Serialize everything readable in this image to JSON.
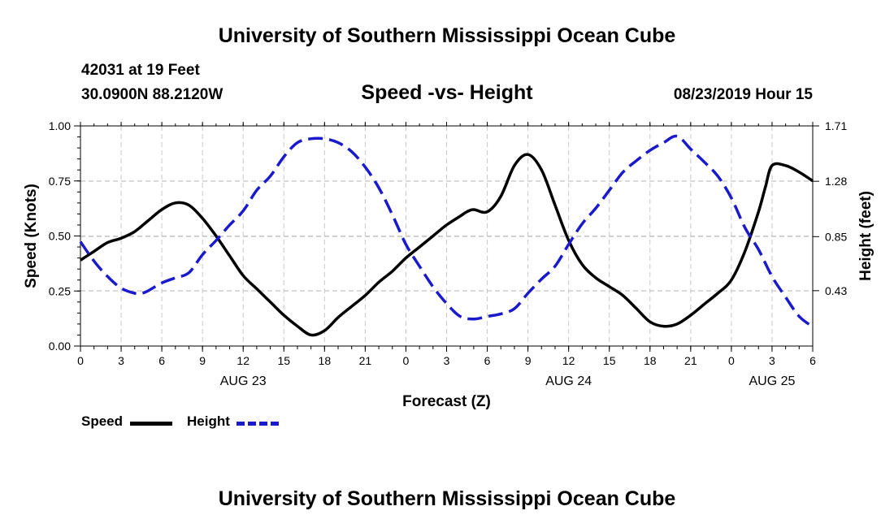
{
  "header": {
    "title": "University of Southern Mississippi Ocean Cube",
    "station": "42031 at 19 Feet",
    "coords": "30.0900N 88.2120W",
    "subtitle": "Speed -vs- Height",
    "timestamp": "08/23/2019 Hour 15"
  },
  "footer": {
    "title": "University of Southern Mississippi Ocean Cube"
  },
  "legend": {
    "speed_label": "Speed",
    "height_label": "Height"
  },
  "colors": {
    "speed": "#000000",
    "height": "#1a1acc",
    "grid": "#c8c8c8"
  },
  "chart_data": {
    "type": "line",
    "title": "Speed -vs- Height",
    "xlabel": "Forecast (Z)",
    "ylabel": "Speed (Knots)",
    "y2label": "Height (feet)",
    "xlim": [
      0,
      54
    ],
    "ylim": [
      0,
      1.0
    ],
    "y2lim": [
      0.0,
      1.71
    ],
    "x_ticks": [
      0,
      3,
      6,
      9,
      12,
      15,
      18,
      21,
      24,
      27,
      30,
      33,
      36,
      39,
      42,
      45,
      48,
      51,
      54
    ],
    "x_tick_labels": [
      "0",
      "3",
      "6",
      "9",
      "12",
      "15",
      "18",
      "21",
      "0",
      "3",
      "6",
      "9",
      "12",
      "15",
      "18",
      "21",
      "0",
      "3",
      "6"
    ],
    "date_labels": [
      {
        "x": 12,
        "label": "AUG 23"
      },
      {
        "x": 36,
        "label": "AUG 24"
      },
      {
        "x": 51,
        "label": "AUG 25"
      }
    ],
    "y_ticks": [
      0,
      0.25,
      0.5,
      0.75,
      1.0
    ],
    "y_tick_labels": [
      "0.00",
      "0.25",
      "0.50",
      "0.75",
      "1.00"
    ],
    "y2_ticks": [
      0.43,
      0.85,
      1.28,
      1.71
    ],
    "y2_tick_labels": [
      "0.43",
      "0.85",
      "1.28",
      "1.71"
    ],
    "grid": true,
    "series": [
      {
        "name": "Speed",
        "axis": "left",
        "style": "solid",
        "x": [
          0,
          1,
          2,
          3,
          4,
          5,
          6,
          7,
          8,
          9,
          10,
          11,
          12,
          13,
          14,
          15,
          16,
          17,
          18,
          19,
          20,
          21,
          22,
          23,
          24,
          25,
          26,
          27,
          28,
          28.5,
          29,
          30,
          31,
          32,
          33,
          34,
          35,
          36,
          37,
          38,
          39,
          40,
          41,
          42,
          43,
          44,
          45,
          46,
          47,
          48,
          49,
          50,
          50.5,
          51,
          52,
          53,
          54
        ],
        "y": [
          0.39,
          0.43,
          0.47,
          0.49,
          0.52,
          0.57,
          0.62,
          0.65,
          0.64,
          0.58,
          0.5,
          0.41,
          0.32,
          0.26,
          0.2,
          0.14,
          0.09,
          0.05,
          0.07,
          0.13,
          0.18,
          0.23,
          0.29,
          0.34,
          0.4,
          0.45,
          0.5,
          0.55,
          0.59,
          0.61,
          0.62,
          0.61,
          0.68,
          0.82,
          0.87,
          0.8,
          0.64,
          0.48,
          0.37,
          0.31,
          0.27,
          0.23,
          0.17,
          0.11,
          0.09,
          0.1,
          0.14,
          0.19,
          0.24,
          0.3,
          0.43,
          0.61,
          0.72,
          0.82,
          0.82,
          0.79,
          0.75
        ]
      },
      {
        "name": "Height",
        "axis": "right",
        "style": "dashed",
        "x": [
          0,
          1,
          2,
          3,
          4,
          4.5,
          5,
          6,
          7,
          8,
          9,
          10,
          11,
          12,
          13,
          14,
          15,
          16,
          17,
          18,
          19,
          20,
          21,
          22,
          23,
          24,
          25,
          26,
          27,
          28,
          29,
          30,
          31,
          32,
          33,
          34,
          35,
          36,
          37,
          38,
          39,
          40,
          41,
          42,
          43,
          44,
          45,
          46,
          47,
          48,
          49,
          50,
          51,
          52,
          53,
          54
        ],
        "y": [
          0.81,
          0.66,
          0.54,
          0.45,
          0.41,
          0.41,
          0.43,
          0.49,
          0.53,
          0.57,
          0.71,
          0.82,
          0.94,
          1.05,
          1.21,
          1.32,
          1.47,
          1.58,
          1.61,
          1.61,
          1.58,
          1.51,
          1.39,
          1.23,
          1.02,
          0.79,
          0.62,
          0.46,
          0.33,
          0.23,
          0.21,
          0.23,
          0.25,
          0.29,
          0.41,
          0.52,
          0.62,
          0.79,
          0.95,
          1.07,
          1.21,
          1.35,
          1.44,
          1.52,
          1.58,
          1.63,
          1.53,
          1.43,
          1.32,
          1.15,
          0.92,
          0.75,
          0.54,
          0.38,
          0.23,
          0.15
        ]
      }
    ]
  }
}
